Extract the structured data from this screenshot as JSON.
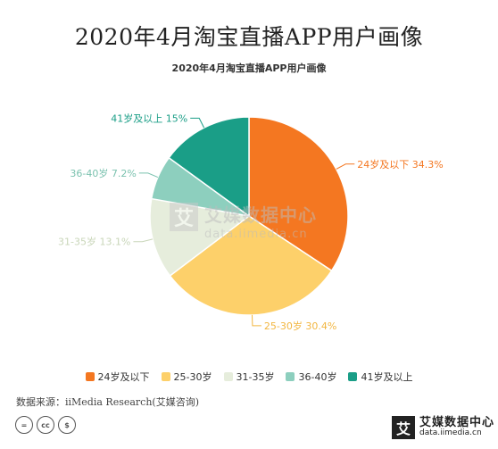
{
  "header": {
    "main_title": "2020年4月淘宝直播APP用户画像"
  },
  "chart_data": {
    "type": "pie",
    "title": "2020年4月淘宝直播APP用户画像",
    "categories": [
      "24岁及以下",
      "25-30岁",
      "31-35岁",
      "36-40岁",
      "41岁及以上"
    ],
    "values": [
      34.3,
      30.4,
      13.1,
      7.2,
      15.0
    ],
    "value_labels": [
      "34.3%",
      "30.4%",
      "13.1%",
      "7.2%",
      "15%"
    ],
    "colors": [
      "#F47721",
      "#FDD06A",
      "#E6EDDC",
      "#8DCFBE",
      "#1A9E87"
    ],
    "label_colors": [
      "#F47721",
      "#F2B640",
      "#C9D6B9",
      "#7BC2AF",
      "#1A9E87"
    ],
    "legend_position": "bottom"
  },
  "watermark": {
    "icon_char": "艾",
    "text_cn": "艾媒数据中心",
    "text_url": "data.iimedia.cn"
  },
  "footer": {
    "source": "数据来源：iiMedia Research(艾媒咨询)",
    "license_icons": [
      "=",
      "cc",
      "$"
    ],
    "brand_icon": "艾",
    "brand_cn": "艾媒数据中心",
    "brand_url": "data.iimedia.cn"
  }
}
